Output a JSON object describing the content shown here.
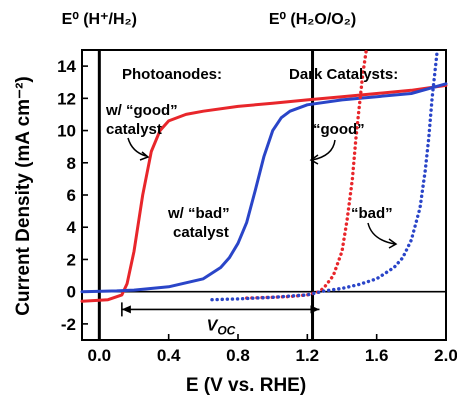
{
  "chart_data": {
    "type": "line",
    "xlabel": "E (V vs. RHE)",
    "ylabel": "Current Density (mA cm⁻²)",
    "xlim": [
      -0.1,
      2.0
    ],
    "ylim": [
      -3,
      15
    ],
    "x_ticks": [
      0.0,
      0.4,
      0.8,
      1.2,
      1.6,
      2.0
    ],
    "x_tick_labels": [
      "0.0",
      "0.4",
      "0.8",
      "1.2",
      "1.6",
      "2.0"
    ],
    "y_ticks": [
      -2,
      0,
      2,
      4,
      6,
      8,
      10,
      12,
      14
    ],
    "y_tick_labels": [
      "-2",
      "0",
      "2",
      "4",
      "6",
      "8",
      "10",
      "12",
      "14"
    ],
    "grid": false,
    "series": [
      {
        "color": "#e8262b",
        "style": "solid",
        "x": [
          -0.1,
          0.05,
          0.13,
          0.16,
          0.2,
          0.25,
          0.3,
          0.35,
          0.4,
          0.5,
          0.6,
          0.8,
          1.0,
          1.2,
          1.4,
          1.6,
          1.8,
          2.0
        ],
        "y": [
          -0.6,
          -0.5,
          -0.2,
          0.5,
          2.5,
          6.0,
          8.7,
          10.0,
          10.6,
          11.0,
          11.2,
          11.5,
          11.7,
          11.9,
          12.1,
          12.3,
          12.5,
          12.8
        ]
      },
      {
        "color": "#2a45c8",
        "style": "solid",
        "x": [
          -0.1,
          0.1,
          0.2,
          0.4,
          0.6,
          0.7,
          0.75,
          0.8,
          0.85,
          0.9,
          0.95,
          1.0,
          1.05,
          1.1,
          1.2,
          1.4,
          1.6,
          1.8,
          2.0
        ],
        "y": [
          0.0,
          0.05,
          0.1,
          0.3,
          0.8,
          1.5,
          2.1,
          3.0,
          4.3,
          6.3,
          8.4,
          10.0,
          10.8,
          11.2,
          11.6,
          11.9,
          12.1,
          12.3,
          12.9
        ]
      },
      {
        "color": "#e8262b",
        "style": "dotted",
        "x": [
          0.85,
          1.0,
          1.1,
          1.2,
          1.27,
          1.3,
          1.35,
          1.4,
          1.43,
          1.46,
          1.48,
          1.5,
          1.52,
          1.54
        ],
        "y": [
          -0.4,
          -0.35,
          -0.3,
          -0.2,
          0.0,
          0.3,
          1.0,
          2.5,
          4.5,
          7.0,
          9.5,
          11.5,
          13.5,
          15.0
        ]
      },
      {
        "color": "#2a45c8",
        "style": "dotted",
        "x": [
          0.65,
          0.8,
          1.0,
          1.2,
          1.3,
          1.4,
          1.5,
          1.6,
          1.7,
          1.75,
          1.8,
          1.85,
          1.88,
          1.9,
          1.92,
          1.95
        ],
        "y": [
          -0.5,
          -0.45,
          -0.35,
          -0.2,
          0.05,
          0.2,
          0.45,
          0.8,
          1.5,
          2.1,
          3.2,
          5.2,
          7.5,
          9.5,
          12.0,
          15.0
        ]
      }
    ],
    "reference_lines": [
      {
        "x": 0.0,
        "label": "E⁰ (H⁺/H₂)"
      },
      {
        "x": 1.23,
        "label": "E⁰ (H₂O/O₂)"
      }
    ],
    "annotations": {
      "photoanodes": "Photoanodes:",
      "dark_catalysts": "Dark Catalysts:",
      "good_catalyst_line1": "w/ “good”",
      "good_catalyst_line2": "catalyst",
      "bad_catalyst_line1": "w/ “bad”",
      "bad_catalyst_line2": "catalyst",
      "good_dark": "“good”",
      "bad_dark": "“bad”",
      "voc": "V",
      "voc_sub": "OC"
    },
    "voc_span": [
      0.13,
      1.27
    ]
  }
}
